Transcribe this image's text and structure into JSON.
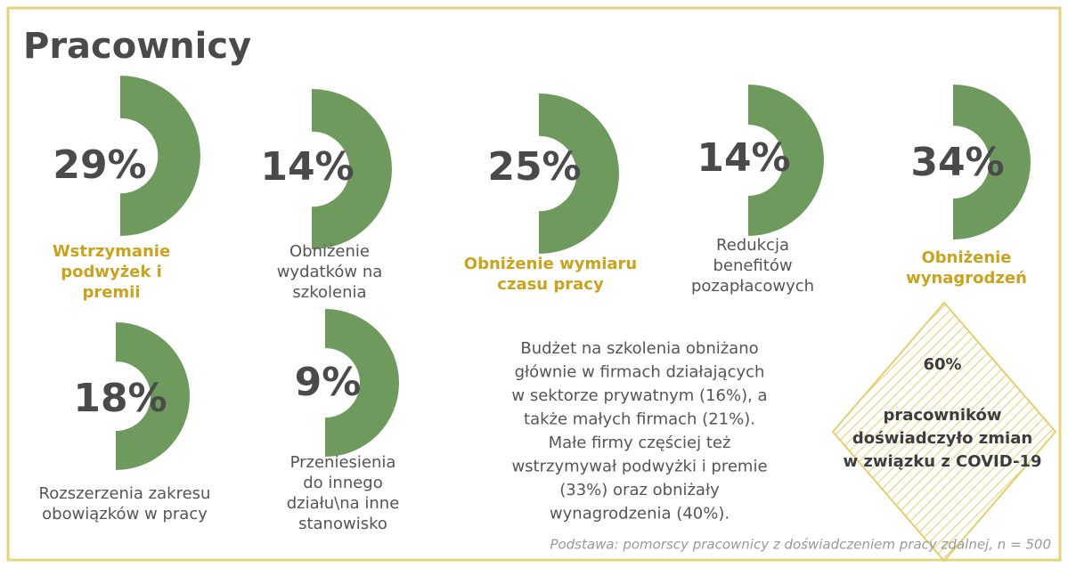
{
  "title": "Pracownicy",
  "items": [
    {
      "percent": "29%",
      "label": [
        "Wstrzymanie",
        "podwyżek i",
        "premii"
      ]
    },
    {
      "percent": "14%",
      "label": [
        "Obniżenie",
        "wydatków na",
        "szkolenia"
      ]
    },
    {
      "percent": "25%",
      "label": [
        "Obniżenie wymiaru",
        "czasu pracy"
      ]
    },
    {
      "percent": "14%",
      "label": [
        "Redukcja",
        "benefitów",
        "pozapłacowych"
      ]
    },
    {
      "percent": "34%",
      "label": [
        "Obniżenie",
        "wynagrodzeń"
      ]
    },
    {
      "percent": "18%",
      "label": [
        "Rozszerzenia zakresu",
        "obowiązków w pracy"
      ]
    },
    {
      "percent": "9%",
      "label": [
        "Przeniesienia",
        "do innego",
        "działu\\na inne",
        "stanowisko"
      ]
    }
  ],
  "note": [
    "Budżet na szkolenia obniżano",
    "głównie w firmach działających",
    "w sektorze prywatnym (16%), a",
    "także małych firmach (21%).",
    "Małe firmy częściej też",
    "wstrzymywał podwyżki i premie",
    "(33%) oraz obniżały",
    "wynagrodzenia (40%)."
  ],
  "highlight": {
    "percent": "60%",
    "label": [
      "pracowników",
      "doświadczyło zmian",
      "w związku z COVID-19"
    ]
  },
  "footnote": "Podstawa: pomorscy pracownicy z doświadczeniem pracy zdalnej, n = 500"
}
